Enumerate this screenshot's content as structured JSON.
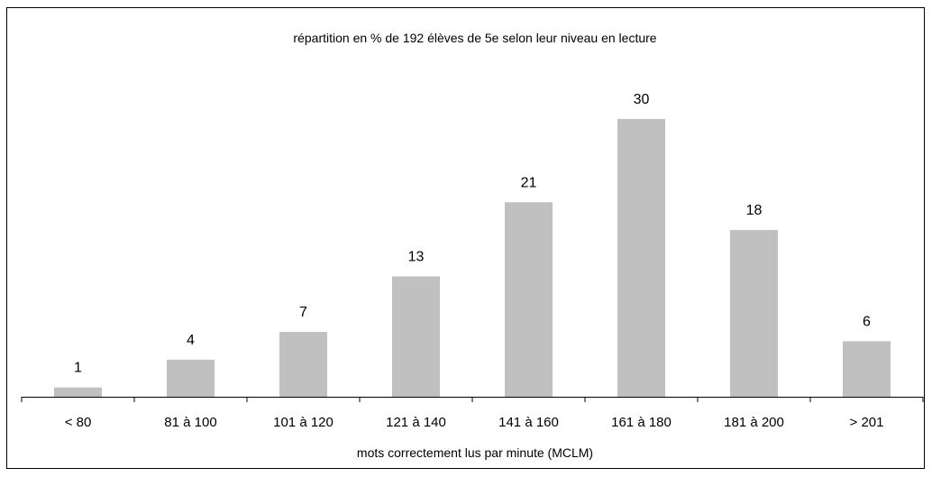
{
  "chart_data": {
    "type": "bar",
    "title": "répartition en % de 192 élèves de 5e selon leur niveau en lecture",
    "xlabel": "mots correctement lus par minute (MCLM)",
    "ylabel": "",
    "categories": [
      "< 80",
      "81 à 100",
      "101 à 120",
      "121 à 140",
      "141 à 160",
      "161 à 180",
      "181 à 200",
      "> 201"
    ],
    "values": [
      1,
      4,
      7,
      13,
      21,
      30,
      18,
      6
    ],
    "ylim": [
      0,
      30
    ],
    "grid": false,
    "legend": "none",
    "bar_color": "#c0c0c0",
    "axis_color": "#000000"
  }
}
